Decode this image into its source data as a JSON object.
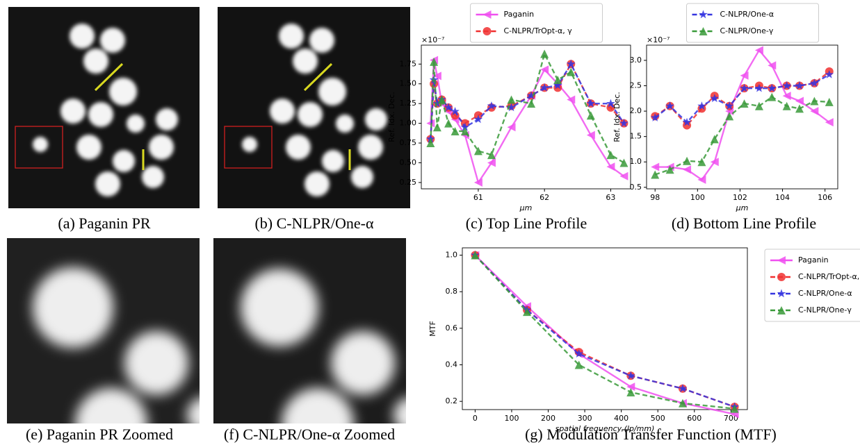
{
  "panels": [
    {
      "caption": "(a) Paganin PR"
    },
    {
      "caption": "(b) C-NLPR/One-α"
    },
    {
      "caption": "(e) Paganin PR Zoomed"
    },
    {
      "caption": "(f) C-NLPR/One-α Zoomed"
    }
  ],
  "chart_data": [
    {
      "type": "line",
      "caption": "(c) Top Line Profile",
      "xlabel": "μm",
      "ylabel": "Ref. Idx. Dec.",
      "offset_text": "×10⁻⁷",
      "legend": "top",
      "x": [
        60.28,
        60.33,
        60.38,
        60.45,
        60.55,
        60.65,
        60.8,
        61.0,
        61.2,
        61.5,
        61.8,
        62.0,
        62.2,
        62.4,
        62.7,
        63.0,
        63.2
      ],
      "xlim": [
        60.14,
        63.3
      ],
      "xticks": [
        61,
        62,
        63
      ],
      "ylim": [
        0.17,
        1.99
      ],
      "yticks": [
        0.25,
        {
          "value": 0.5,
          "label": "0.50"
        },
        0.75,
        {
          "value": 1,
          "label": "1.00"
        },
        1.25,
        {
          "value": 1.5,
          "label": "1.50"
        },
        1.75
      ],
      "series": [
        {
          "name": "Paganin",
          "color": "#f050f0",
          "marker": "<",
          "linestyle": "solid",
          "values": [
            1.0,
            1.8,
            1.6,
            1.25,
            1.15,
            1.05,
            0.85,
            0.25,
            0.5,
            0.95,
            1.35,
            1.68,
            1.5,
            1.3,
            0.85,
            0.45,
            0.33
          ]
        },
        {
          "name": "C-NLPR/TrOpt-α, γ",
          "color": "#f03030",
          "marker": "o",
          "linestyle": "dashed",
          "values": [
            0.8,
            1.5,
            1.25,
            1.3,
            1.2,
            1.1,
            1.0,
            1.1,
            1.2,
            1.22,
            1.35,
            1.45,
            1.45,
            1.75,
            1.25,
            1.2,
            1.0
          ]
        },
        {
          "color": "#3535e0",
          "marker": "*",
          "linestyle": "dashed",
          "values": [
            0.8,
            1.55,
            1.25,
            1.3,
            1.2,
            1.15,
            0.95,
            1.05,
            1.22,
            1.2,
            1.35,
            1.45,
            1.48,
            1.75,
            1.25,
            1.25,
            1.0
          ]
        },
        {
          "color": "#3a9a3a",
          "marker": "^",
          "linestyle": "dashed",
          "values": [
            0.75,
            1.78,
            0.95,
            1.3,
            1.0,
            0.9,
            0.9,
            0.65,
            0.6,
            1.3,
            1.25,
            1.88,
            1.55,
            1.65,
            1.1,
            0.6,
            0.5
          ]
        }
      ]
    },
    {
      "type": "line",
      "caption": "(d) Bottom Line Profile",
      "xlabel": "μm",
      "ylabel": "Ref. Idx. Dec.",
      "offset_text": "×10⁻⁷",
      "legend": "top",
      "x": [
        98,
        98.7,
        99.5,
        100.2,
        100.8,
        101.5,
        102.2,
        102.9,
        103.5,
        104.2,
        104.8,
        105.5,
        106.2
      ],
      "xlim": [
        97.6,
        106.6
      ],
      "xticks": [
        98,
        100,
        102,
        104,
        106
      ],
      "ylim": [
        0.47,
        3.3
      ],
      "yticks": [
        0.5,
        {
          "value": 1,
          "label": "1.0"
        },
        1.5,
        {
          "value": 2,
          "label": "2.0"
        },
        2.5,
        {
          "value": 3,
          "label": "3.0"
        }
      ],
      "series": [
        {
          "color": "#f050f0",
          "marker": "<",
          "linestyle": "solid",
          "values": [
            0.9,
            0.9,
            0.85,
            0.65,
            1.0,
            2.0,
            2.7,
            3.2,
            2.9,
            2.3,
            2.2,
            2.0,
            1.78
          ]
        },
        {
          "color": "#f03030",
          "marker": "o",
          "linestyle": "dashed",
          "values": [
            1.9,
            2.1,
            1.72,
            2.05,
            2.3,
            2.1,
            2.45,
            2.5,
            2.45,
            2.5,
            2.5,
            2.55,
            2.78
          ]
        },
        {
          "name": "C-NLPR/One-α",
          "color": "#3535e0",
          "marker": "*",
          "linestyle": "dashed",
          "values": [
            1.87,
            2.1,
            1.78,
            2.1,
            2.25,
            2.1,
            2.45,
            2.45,
            2.45,
            2.5,
            2.5,
            2.55,
            2.72
          ]
        },
        {
          "name": "C-NLPR/One-γ",
          "color": "#3a9a3a",
          "marker": "^",
          "linestyle": "dashed",
          "values": [
            0.75,
            0.85,
            1.02,
            1.0,
            1.45,
            1.9,
            2.15,
            2.1,
            2.28,
            2.1,
            2.05,
            2.2,
            2.18
          ]
        }
      ]
    },
    {
      "type": "line",
      "caption": "(g) Modulation Transfer Function (MTF)",
      "xlabel": "spatial frequency (lp/mm)",
      "ylabel": "MTF",
      "legend": "right",
      "x": [
        0,
        142,
        284,
        426,
        568,
        710
      ],
      "xlim": [
        -35,
        745
      ],
      "xticks": [
        0,
        100,
        200,
        300,
        400,
        500,
        600,
        700
      ],
      "ylim": [
        0.155,
        1.04
      ],
      "yticks": [
        0.2,
        0.4,
        0.6,
        0.8,
        {
          "value": 1,
          "label": "1.0"
        }
      ],
      "series": [
        {
          "name": "Paganin",
          "color": "#f050f0",
          "marker": "<",
          "linestyle": "solid",
          "values": [
            1.0,
            0.72,
            0.46,
            0.28,
            0.19,
            0.13
          ]
        },
        {
          "name": "C-NLPR/TrOpt-α, γ",
          "color": "#f03030",
          "marker": "o",
          "linestyle": "dashed",
          "values": [
            1.0,
            0.7,
            0.47,
            0.34,
            0.27,
            0.17
          ]
        },
        {
          "name": "C-NLPR/One-α",
          "color": "#3535e0",
          "marker": "*",
          "linestyle": "dashed",
          "values": [
            1.0,
            0.7,
            0.46,
            0.34,
            0.27,
            0.17
          ]
        },
        {
          "name": "C-NLPR/One-γ",
          "color": "#3a9a3a",
          "marker": "^",
          "linestyle": "dashed",
          "values": [
            1.0,
            0.69,
            0.4,
            0.25,
            0.19,
            0.16
          ]
        }
      ]
    }
  ]
}
